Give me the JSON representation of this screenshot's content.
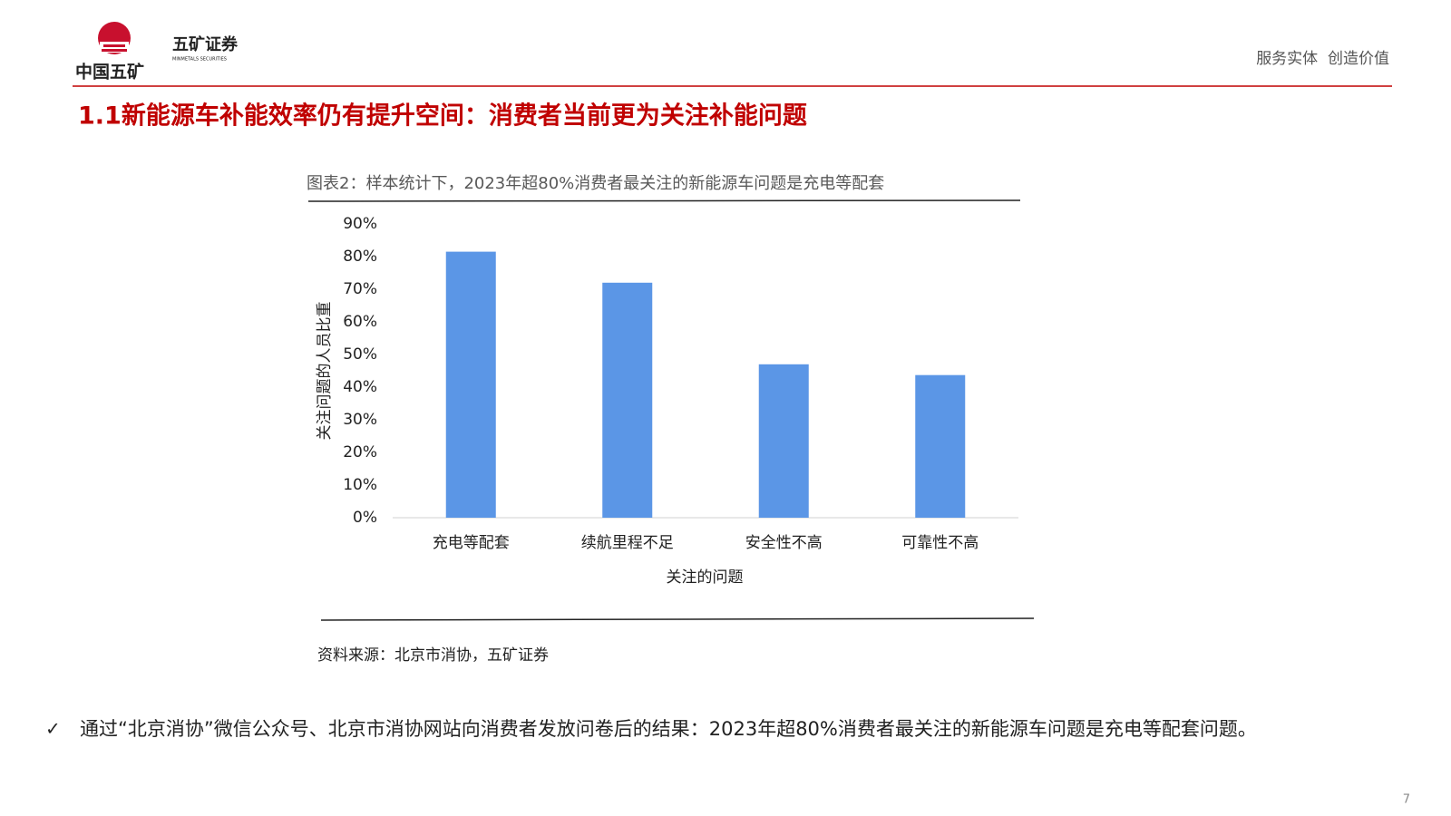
{
  "header": {
    "logo_text": "中国五矿",
    "brand": "五矿证券",
    "brand_en": "MINMETALS SECURITIES",
    "slogan": "服务实体  创造价值"
  },
  "title": "1.1新能源车补能效率仍有提升空间：消费者当前更为关注补能问题",
  "chart_data": {
    "type": "bar",
    "title": "图表2：样本统计下，2023年超80%消费者最关注的新能源车问题是充电等配套",
    "x_label": "关注的问题",
    "y_label": "关注问题的人员比重",
    "categories": [
      "充电等配套",
      "续航里程不足",
      "安全性不高",
      "可靠性不高"
    ],
    "values": [
      81.5,
      72,
      47,
      43.7
    ],
    "color": "#5b96e6",
    "ylim": [
      0,
      90
    ],
    "yticks": [
      {
        "value": 0,
        "label": "0%"
      },
      {
        "value": 10,
        "label": "10%"
      },
      {
        "value": 20,
        "label": "20%"
      },
      {
        "value": 30,
        "label": "30%"
      },
      {
        "value": 40,
        "label": "40%"
      },
      {
        "value": 50,
        "label": "50%"
      },
      {
        "value": 60,
        "label": "60%"
      },
      {
        "value": 70,
        "label": "70%"
      },
      {
        "value": 80,
        "label": "80%"
      },
      {
        "value": 90,
        "label": "90%"
      }
    ],
    "grid": false,
    "source": "资料来源：北京市消协，五矿证券"
  },
  "bullet": "通过“北京消协”微信公众号、北京市消协网站向消费者发放问卷后的结果：2023年超80%消费者最关注的新能源车问题是充电等配套问题。",
  "page_number": "7"
}
